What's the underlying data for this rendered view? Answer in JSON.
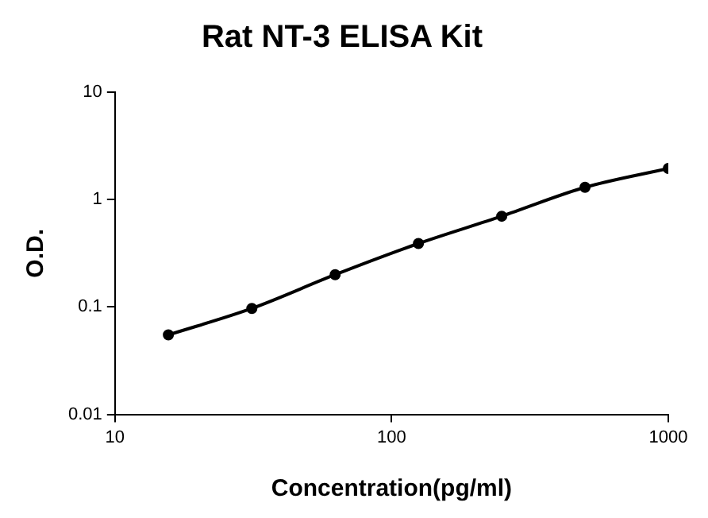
{
  "chart_data": {
    "type": "scatter",
    "title": "Rat NT-3 ELISA Kit",
    "xlabel": "Concentration(pg/ml)",
    "ylabel": "O.D.",
    "log": "xy",
    "xlim": [
      10,
      1000
    ],
    "xticks": [
      10,
      100,
      1000
    ],
    "ylim": [
      0.01,
      10
    ],
    "yticks": [
      0.01,
      0.1,
      1,
      10
    ],
    "grid": false,
    "legend": false,
    "marker": "circle",
    "series": [
      {
        "color": "#000000",
        "x": [
          15.6,
          31.25,
          62.5,
          125,
          250,
          500,
          1000
        ],
        "values": [
          0.055,
          0.097,
          0.2,
          0.39,
          0.7,
          1.3,
          1.95
        ]
      },
      {
        "type": "line",
        "color": "#000000",
        "line_style": "solid",
        "marker": "none",
        "x": [
          15.6,
          31.25,
          62.5,
          125,
          250,
          500,
          1000
        ],
        "values": [
          0.055,
          0.097,
          0.2,
          0.39,
          0.7,
          1.3,
          1.95
        ]
      }
    ]
  }
}
